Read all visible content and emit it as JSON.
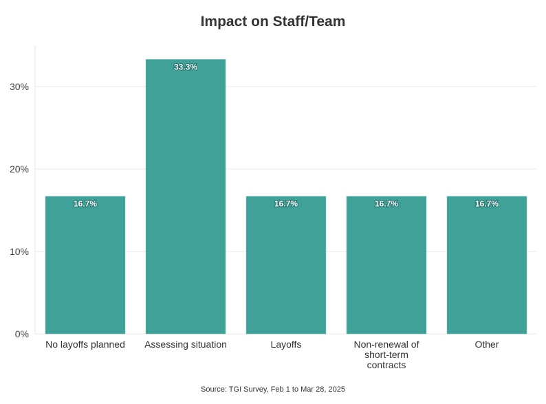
{
  "chart_data": {
    "type": "bar",
    "title": "Impact on Staff/Team",
    "categories": [
      [
        "No layoffs planned"
      ],
      [
        "Assessing situation"
      ],
      [
        "Layoffs"
      ],
      [
        "Non-renewal of",
        "short-term",
        "contracts"
      ],
      [
        "Other"
      ]
    ],
    "values": [
      16.7,
      33.3,
      16.7,
      16.7,
      16.7
    ],
    "data_labels": [
      "16.7%",
      "33.3%",
      "16.7%",
      "16.7%",
      "16.7%"
    ],
    "xlabel": "",
    "ylabel": "",
    "ylim": [
      0,
      35
    ],
    "yticks": [
      0,
      10,
      20,
      30
    ],
    "ytick_labels": [
      "0%",
      "10%",
      "20%",
      "30%"
    ],
    "grid": true,
    "bar_color": "#3a9e96",
    "source": "Source: TGI Survey, Feb 1 to Mar 28, 2025"
  }
}
